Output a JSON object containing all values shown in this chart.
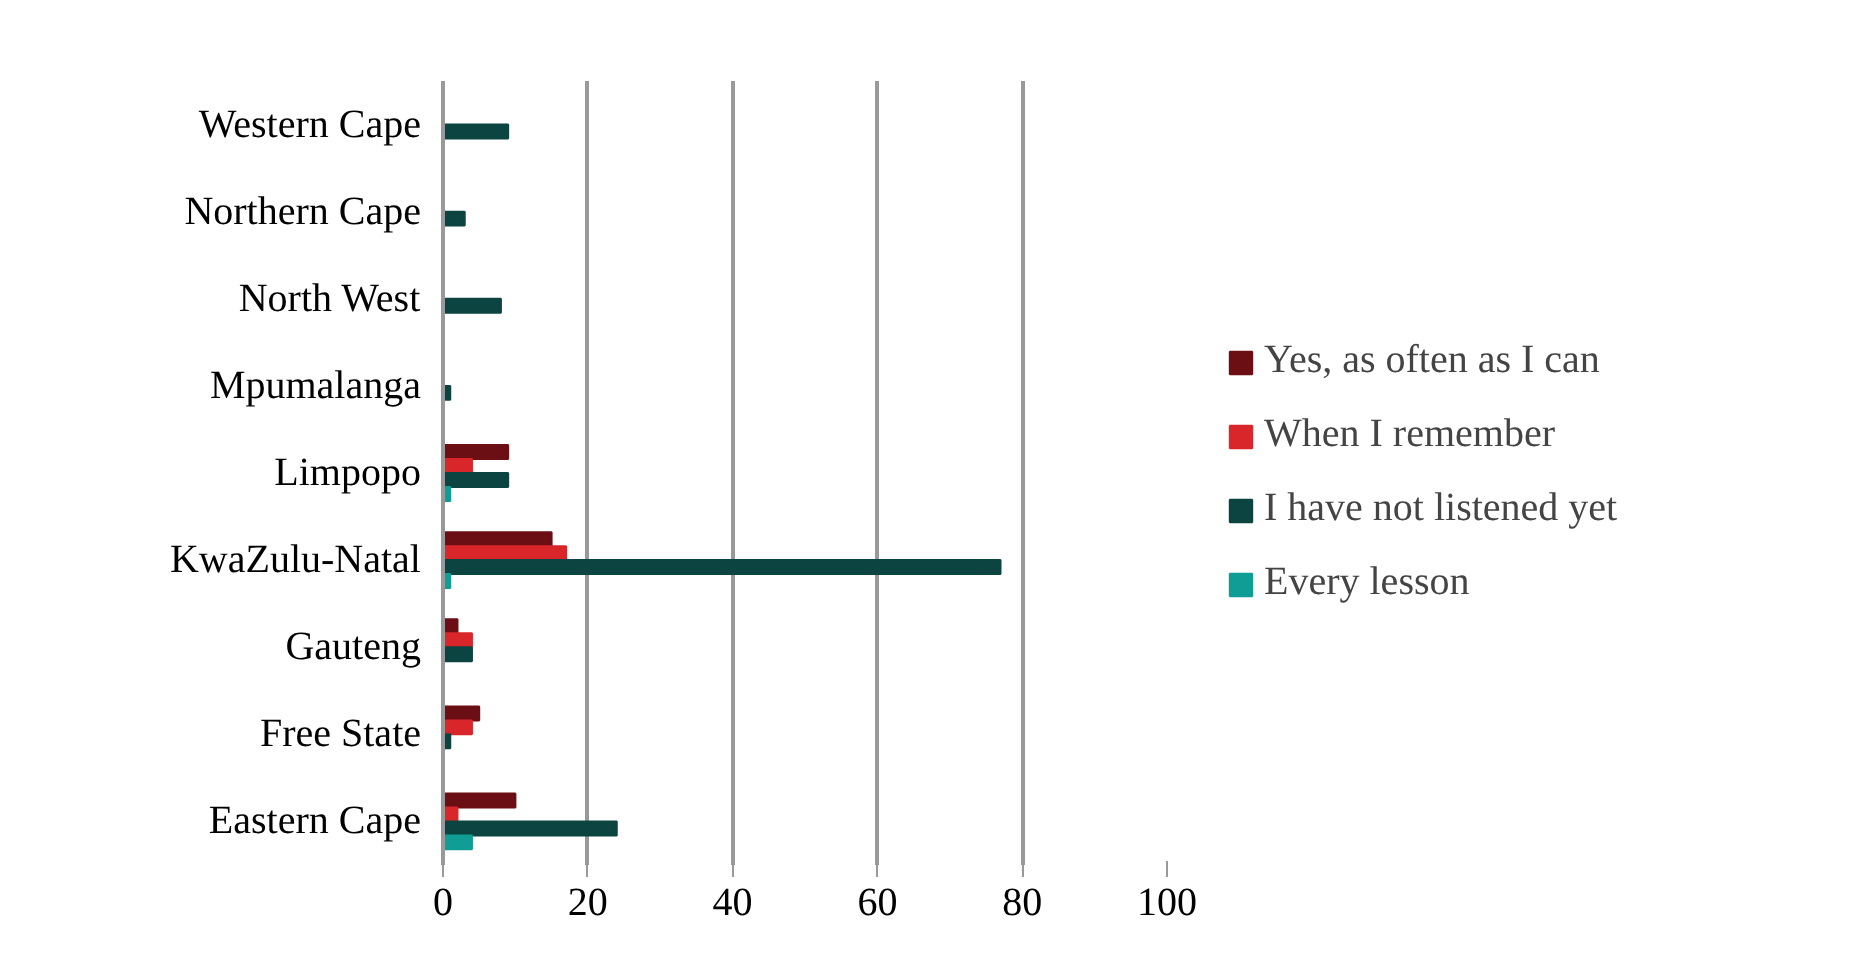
{
  "chart_data": {
    "type": "bar",
    "orientation": "horizontal",
    "categories": [
      "Western Cape",
      "Northern Cape",
      "North West",
      "Mpumalanga",
      "Limpopo",
      "KwaZulu-Natal",
      "Gauteng",
      "Free State",
      "Eastern Cape"
    ],
    "series": [
      {
        "name": "Yes, as often as I can",
        "color": "#6b0f14",
        "values": [
          0,
          0,
          0,
          0,
          9,
          15,
          2,
          5,
          10
        ]
      },
      {
        "name": "When I remember",
        "color": "#d9262b",
        "values": [
          0,
          0,
          0,
          0,
          4,
          17,
          4,
          4,
          2
        ]
      },
      {
        "name": "I have not listened yet",
        "color": "#0b4440",
        "values": [
          9,
          3,
          8,
          1,
          9,
          77,
          4,
          1,
          24
        ]
      },
      {
        "name": "Every lesson",
        "color": "#109d95",
        "values": [
          0,
          0,
          0,
          0,
          1,
          1,
          0,
          0,
          4
        ]
      }
    ],
    "xlim": [
      0,
      100
    ],
    "xticks": [
      0,
      20,
      40,
      60,
      80,
      100
    ],
    "grid": "x",
    "legend": "right"
  }
}
